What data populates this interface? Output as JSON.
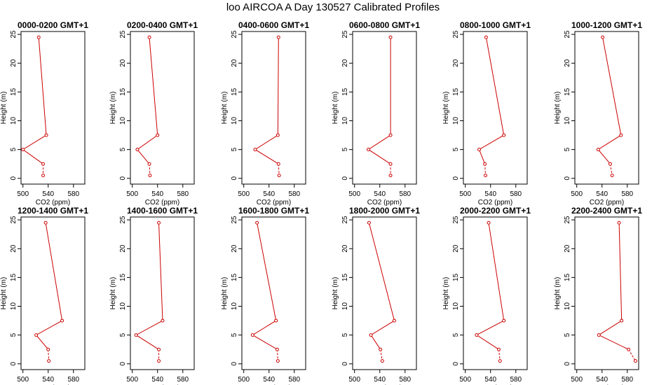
{
  "title": "loo AIRCOA A  Day 130527  Calibrated Profiles",
  "colors": {
    "line": "#cc0000",
    "axis": "#000000",
    "background": "#ffffff"
  },
  "axes": {
    "xlabel": "CO2 (ppm)",
    "ylabel": "Height (m)",
    "xlim": [
      497,
      598
    ],
    "ylim": [
      -1,
      25.5
    ],
    "xticks": [
      500,
      540,
      580
    ],
    "yticks": [
      0,
      5,
      10,
      15,
      20,
      25
    ],
    "grid": false
  },
  "chart_data": [
    {
      "type": "line",
      "title": "0000-0200 GMT+1",
      "x": [
        525,
        537,
        500,
        532,
        532
      ],
      "y": [
        24.5,
        7.5,
        5,
        2.5,
        0.5
      ]
    },
    {
      "type": "line",
      "title": "0200-0400 GMT+1",
      "x": [
        527,
        540,
        508,
        527,
        528
      ],
      "y": [
        24.5,
        7.5,
        5,
        2.5,
        0.5
      ]
    },
    {
      "type": "line",
      "title": "0400-0600 GMT+1",
      "x": [
        555,
        554,
        518,
        555,
        556
      ],
      "y": [
        24.5,
        7.5,
        5,
        2.5,
        0.5
      ]
    },
    {
      "type": "line",
      "title": "0600-0800 GMT+1",
      "x": [
        557,
        557,
        522,
        557,
        557
      ],
      "y": [
        24.5,
        7.5,
        5,
        2.5,
        0.5
      ]
    },
    {
      "type": "line",
      "title": "0800-1000 GMT+1",
      "x": [
        533,
        561,
        522,
        531,
        532
      ],
      "y": [
        24.5,
        7.5,
        5,
        2.5,
        0.5
      ]
    },
    {
      "type": "line",
      "title": "1000-1200 GMT+1",
      "x": [
        541,
        570,
        534,
        553,
        556
      ],
      "y": [
        24.5,
        7.5,
        5,
        2.5,
        0.5
      ]
    },
    {
      "type": "line",
      "title": "1200-1400 GMT+1",
      "x": [
        536,
        562,
        521,
        540,
        541
      ],
      "y": [
        24.5,
        7.5,
        5,
        2.5,
        0.5
      ]
    },
    {
      "type": "line",
      "title": "1400-1600 GMT+1",
      "x": [
        542,
        548,
        506,
        542,
        542
      ],
      "y": [
        24.5,
        7.5,
        5,
        2.5,
        0.5
      ]
    },
    {
      "type": "line",
      "title": "1600-1800 GMT+1",
      "x": [
        521,
        551,
        514,
        553,
        554
      ],
      "y": [
        24.5,
        7.5,
        5,
        2.5,
        0.5
      ]
    },
    {
      "type": "line",
      "title": "1800-2000 GMT+1",
      "x": [
        523,
        563,
        526,
        541,
        544
      ],
      "y": [
        24.5,
        7.5,
        5,
        2.5,
        0.5
      ]
    },
    {
      "type": "line",
      "title": "2000-2200 GMT+1",
      "x": [
        537,
        561,
        518,
        553,
        555
      ],
      "y": [
        24.5,
        7.5,
        5,
        2.5,
        0.5
      ]
    },
    {
      "type": "line",
      "title": "2200-2400 GMT+1",
      "x": [
        567,
        571,
        535,
        582,
        593
      ],
      "y": [
        24.5,
        7.5,
        5,
        2.5,
        0.5
      ]
    }
  ]
}
